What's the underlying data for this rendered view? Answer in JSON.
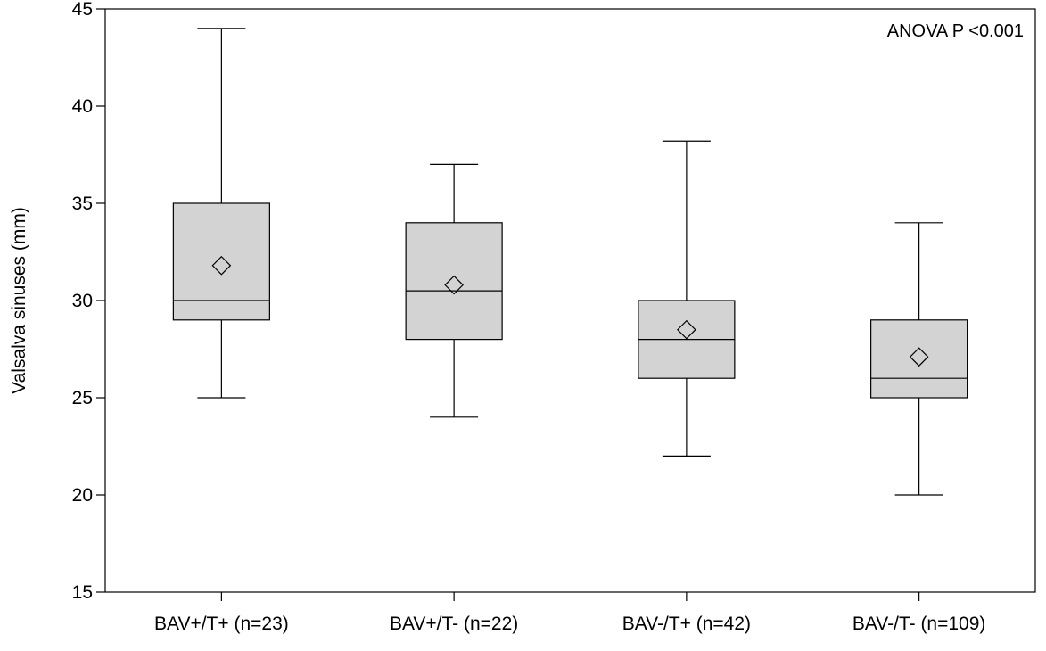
{
  "chart_data": {
    "type": "box",
    "title": "",
    "ylabel": "Valsalva sinuses (mm)",
    "xlabel": "",
    "ylim": [
      15,
      45
    ],
    "yticks": [
      15,
      20,
      25,
      30,
      35,
      40,
      45
    ],
    "grid": false,
    "annotation": "ANOVA P <0.001",
    "box_fill": "#d3d3d3",
    "categories": [
      "BAV+/T+ (n=23)",
      "BAV+/T- (n=22)",
      "BAV-/T+ (n=42)",
      "BAV-/T- (n=109)"
    ],
    "boxes": [
      {
        "whisker_low": 25,
        "q1": 29,
        "median": 30,
        "q3": 35,
        "whisker_high": 44,
        "mean": 31.8
      },
      {
        "whisker_low": 24,
        "q1": 28,
        "median": 30.5,
        "q3": 34,
        "whisker_high": 37,
        "mean": 30.8
      },
      {
        "whisker_low": 22,
        "q1": 26,
        "median": 28,
        "q3": 30,
        "whisker_high": 38.2,
        "mean": 28.5
      },
      {
        "whisker_low": 20,
        "q1": 25,
        "median": 26,
        "q3": 29,
        "whisker_high": 34,
        "mean": 27.1
      }
    ]
  }
}
